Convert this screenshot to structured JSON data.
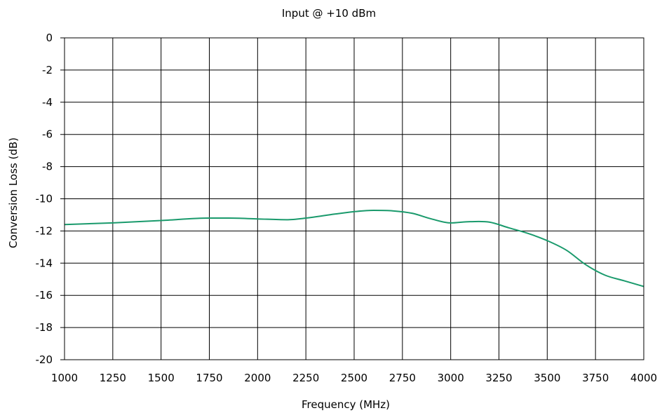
{
  "chart_data": {
    "type": "line",
    "title": "Input @ +10 dBm",
    "xlabel": "Frequency (MHz)",
    "ylabel": "Conversion Loss (dB)",
    "xlim": [
      1000,
      4000
    ],
    "ylim": [
      -20,
      0
    ],
    "xticks": [
      1000,
      1250,
      1500,
      1750,
      2000,
      2250,
      2500,
      2750,
      3000,
      3250,
      3500,
      3750,
      4000
    ],
    "yticks": [
      0,
      -2,
      -4,
      -6,
      -8,
      -10,
      -12,
      -14,
      -16,
      -18,
      -20
    ],
    "grid": true,
    "series": [
      {
        "color": "#1a9a6c",
        "x": [
          1000,
          1250,
          1500,
          1750,
          1850,
          2000,
          2150,
          2250,
          2400,
          2500,
          2600,
          2700,
          2800,
          2900,
          3000,
          3100,
          3200,
          3300,
          3400,
          3500,
          3600,
          3700,
          3800,
          3900,
          4000
        ],
        "y": [
          -11.6,
          -11.5,
          -11.35,
          -11.2,
          -11.2,
          -11.25,
          -11.3,
          -11.2,
          -10.95,
          -10.8,
          -10.72,
          -10.75,
          -10.9,
          -11.25,
          -11.5,
          -11.42,
          -11.45,
          -11.8,
          -12.15,
          -12.6,
          -13.2,
          -14.1,
          -14.75,
          -15.1,
          -15.45
        ]
      }
    ]
  }
}
